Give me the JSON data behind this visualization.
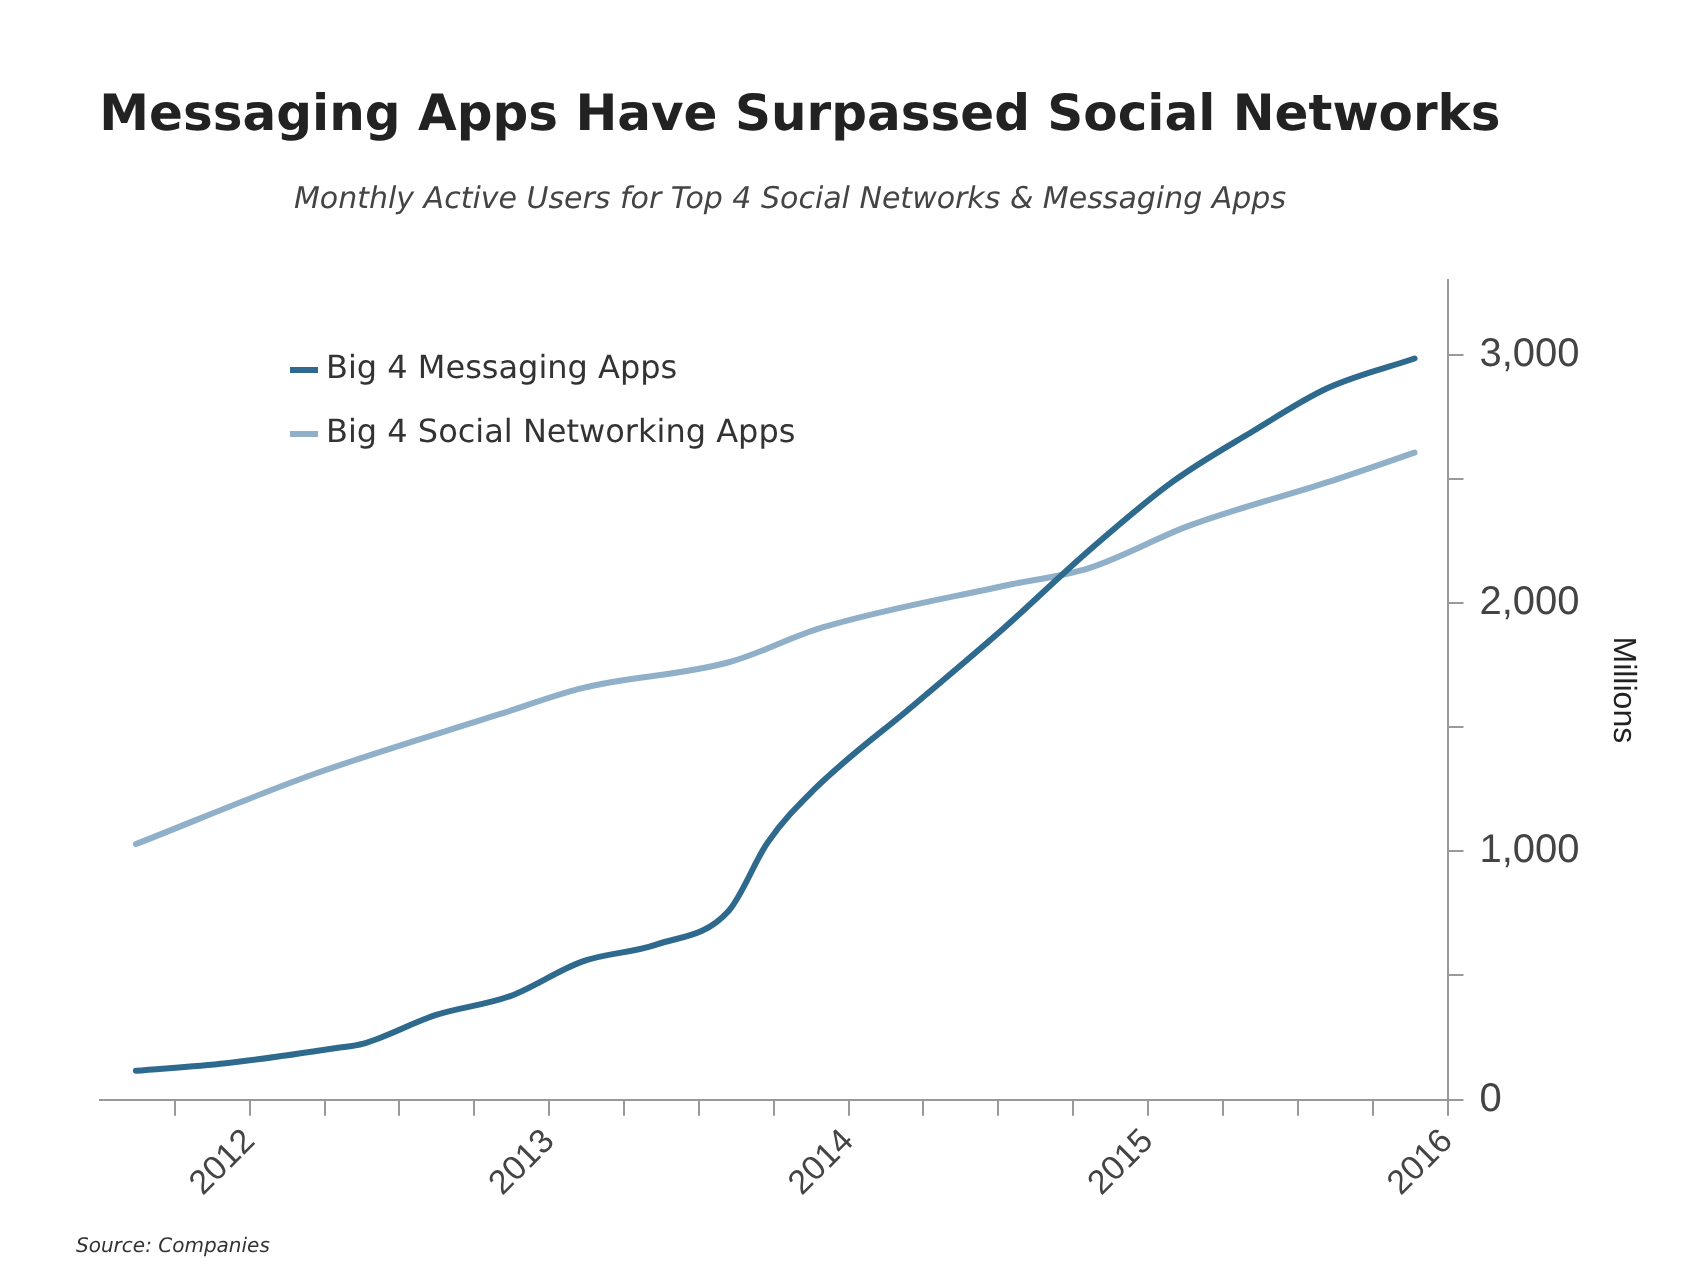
{
  "chart_data": {
    "type": "line",
    "title": "Messaging Apps Have Surpassed Social Networks",
    "subtitle": "Monthly Active Users for Top 4 Social Networks & Messaging Apps",
    "ylabel": "Millions",
    "annotations": [
      "Source: Companies"
    ],
    "series": [
      {
        "name": "Big 4 Messaging Apps",
        "color": "#2e6a8e",
        "x": [
          2011.62,
          2011.92,
          2012.29,
          2012.38,
          2012.62,
          2012.87,
          2013.11,
          2013.36,
          2013.6,
          2013.73,
          2013.88,
          2014.22,
          2014.52,
          2014.8,
          2015.08,
          2015.35,
          2015.6,
          2015.89
        ],
        "values": [
          116,
          147,
          208,
          226,
          340,
          417,
          556,
          625,
          761,
          1036,
          1243,
          1591,
          1900,
          2208,
          2486,
          2691,
          2865,
          2984
        ]
      },
      {
        "name": "Big 4 Social Networking Apps",
        "color": "#8fb0c8",
        "x": [
          2011.62,
          2012.22,
          2012.84,
          2013.11,
          2013.6,
          2013.91,
          2014.52,
          2014.8,
          2015.14,
          2015.6,
          2015.89
        ],
        "values": [
          1029,
          1313,
          1554,
          1657,
          1761,
          1900,
          2069,
          2139,
          2312,
          2486,
          2605
        ]
      }
    ],
    "xlim": [
      2011.5,
      2016
    ],
    "xticks": [
      {
        "value": 2011.75,
        "label": null
      },
      2012,
      {
        "value": 2012.25,
        "label": null
      },
      {
        "value": 2012.5,
        "label": null
      },
      {
        "value": 2012.75,
        "label": null
      },
      2013,
      {
        "value": 2013.25,
        "label": null
      },
      {
        "value": 2013.5,
        "label": null
      },
      {
        "value": 2013.75,
        "label": null
      },
      2014,
      {
        "value": 2014.25,
        "label": null
      },
      {
        "value": 2014.5,
        "label": null
      },
      {
        "value": 2014.75,
        "label": null
      },
      2015,
      {
        "value": 2015.25,
        "label": null
      },
      {
        "value": 2015.5,
        "label": null
      },
      {
        "value": 2015.75,
        "label": null
      },
      2016
    ],
    "ylim": [
      0,
      3300
    ],
    "yticks": [
      {
        "value": 0,
        "label": "0"
      },
      {
        "value": 500,
        "label": null
      },
      {
        "value": 1000,
        "label": "1,000"
      },
      {
        "value": 1500,
        "label": null
      },
      {
        "value": 2000,
        "label": "2,000"
      },
      {
        "value": 2500,
        "label": null
      },
      {
        "value": 3000,
        "label": "3,000"
      }
    ],
    "grid": false,
    "legend": "top left",
    "marker": "none",
    "line_style": "solid"
  }
}
